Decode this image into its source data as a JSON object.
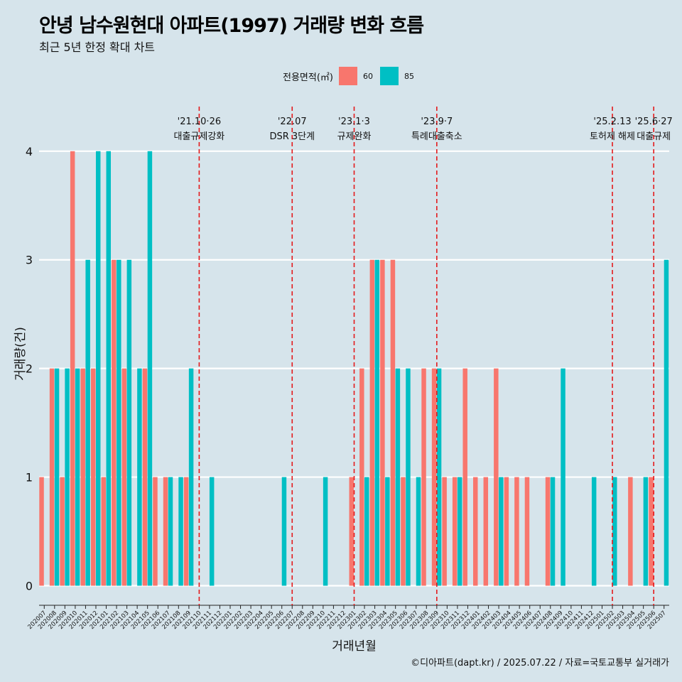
{
  "title": "안녕 남수원현대 아파트(1997) 거래량 변화 흐름",
  "subtitle": "최근 5년 한정 확대 차트",
  "legend": {
    "title": "전용면적(㎡)",
    "items": [
      {
        "label": "60",
        "color": "#f8766d"
      },
      {
        "label": "85",
        "color": "#00bfc4"
      }
    ]
  },
  "caption": "©디아파트(dapt.kr) / 2025.07.22 / 자료=국토교통부 실거래가",
  "chart_data": {
    "type": "bar",
    "xlabel": "거래년월",
    "ylabel": "거래량(건)",
    "ylim": [
      -0.18,
      4.45
    ],
    "yticks": [
      0,
      1,
      2,
      3,
      4
    ],
    "categories": [
      "202007",
      "202008",
      "202009",
      "202010",
      "202011",
      "202012",
      "202101",
      "202102",
      "202103",
      "202104",
      "202105",
      "202106",
      "202107",
      "202108",
      "202109",
      "202110",
      "202111",
      "202112",
      "202201",
      "202202",
      "202203",
      "202204",
      "202205",
      "202206",
      "202207",
      "202208",
      "202209",
      "202210",
      "202211",
      "202212",
      "202301",
      "202302",
      "202303",
      "202304",
      "202305",
      "202306",
      "202307",
      "202308",
      "202309",
      "202310",
      "202311",
      "202312",
      "202401",
      "202402",
      "202403",
      "202404",
      "202405",
      "202406",
      "202407",
      "202408",
      "202409",
      "202410",
      "202411",
      "202412",
      "202501",
      "202502",
      "202503",
      "202504",
      "202505",
      "202506",
      "202507"
    ],
    "series": [
      {
        "name": "60",
        "color": "#f8766d",
        "values": [
          1,
          2,
          1,
          4,
          2,
          2,
          1,
          3,
          2,
          0,
          2,
          1,
          1,
          0,
          1,
          0,
          0,
          0,
          0,
          0,
          0,
          0,
          0,
          0,
          0,
          0,
          0,
          0,
          0,
          0,
          1,
          2,
          3,
          3,
          3,
          1,
          0,
          2,
          2,
          1,
          1,
          2,
          1,
          1,
          2,
          1,
          1,
          1,
          0,
          1,
          0,
          0,
          0,
          0,
          0,
          0,
          0,
          1,
          0,
          1,
          0
        ]
      },
      {
        "name": "85",
        "color": "#00bfc4",
        "values": [
          0,
          2,
          2,
          2,
          3,
          4,
          4,
          3,
          3,
          2,
          4,
          0,
          1,
          1,
          2,
          0,
          1,
          0,
          0,
          0,
          0,
          0,
          0,
          1,
          0,
          0,
          0,
          1,
          0,
          0,
          0,
          1,
          3,
          1,
          2,
          2,
          1,
          0,
          2,
          0,
          1,
          0,
          0,
          0,
          1,
          0,
          0,
          0,
          0,
          1,
          2,
          0,
          0,
          1,
          0,
          1,
          0,
          0,
          1,
          0,
          3
        ]
      }
    ],
    "annotations": [
      {
        "at": "202110",
        "date": "'21.10·26",
        "label": "대출규제강화"
      },
      {
        "at": "202207",
        "date": "'22.07",
        "label": "DSR 3단계"
      },
      {
        "at": "202301",
        "date": "'23.1·3",
        "label": "규제완화"
      },
      {
        "at": "202309",
        "date": "'23.9·7",
        "label": "특례대출축소"
      },
      {
        "at": "202502",
        "date": "'25.2.13",
        "label": "토허제 해제"
      },
      {
        "at": "202506",
        "date": "'25.6·27",
        "label": "대출규제"
      }
    ]
  }
}
